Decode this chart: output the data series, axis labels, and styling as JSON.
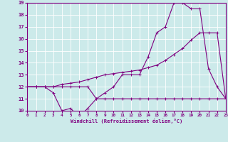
{
  "xlabel": "Windchill (Refroidissement éolien,°C)",
  "background_color": "#cceaea",
  "grid_color": "#b0d8d8",
  "line_color": "#800080",
  "spine_color": "#800080",
  "xmin": 0,
  "xmax": 23,
  "ymin": 10,
  "ymax": 19,
  "line1_x": [
    0,
    1,
    2,
    3,
    4,
    5,
    6,
    7,
    8,
    9,
    10,
    11,
    12,
    13,
    14,
    15,
    16,
    17,
    18,
    19,
    20,
    21,
    22,
    23
  ],
  "line1_y": [
    12,
    12,
    12,
    12,
    12,
    12,
    12,
    12,
    11,
    11,
    11,
    11,
    11,
    11,
    11,
    11,
    11,
    11,
    11,
    11,
    11,
    11,
    11,
    11
  ],
  "line2_x": [
    0,
    1,
    2,
    3,
    4,
    5,
    6,
    7,
    8,
    9,
    10,
    11,
    12,
    13,
    14,
    15,
    16,
    17,
    18,
    19,
    20,
    21,
    22,
    23
  ],
  "line2_y": [
    12,
    12,
    12,
    12,
    12.2,
    12.3,
    12.4,
    12.6,
    12.8,
    13.0,
    13.1,
    13.2,
    13.3,
    13.4,
    13.6,
    13.8,
    14.2,
    14.7,
    15.2,
    15.9,
    16.5,
    16.5,
    16.5,
    11
  ],
  "line3_x": [
    0,
    1,
    2,
    3,
    4,
    5,
    6,
    7,
    8,
    9,
    10,
    11,
    12,
    13,
    14,
    15,
    16,
    17,
    18,
    19,
    20,
    21,
    22,
    23
  ],
  "line3_y": [
    12,
    12,
    12,
    11.5,
    10,
    10.2,
    9.5,
    10.2,
    11,
    11.5,
    12,
    13,
    13,
    13,
    14.5,
    16.5,
    17,
    19,
    19,
    18.5,
    18.5,
    13.5,
    12,
    11
  ]
}
